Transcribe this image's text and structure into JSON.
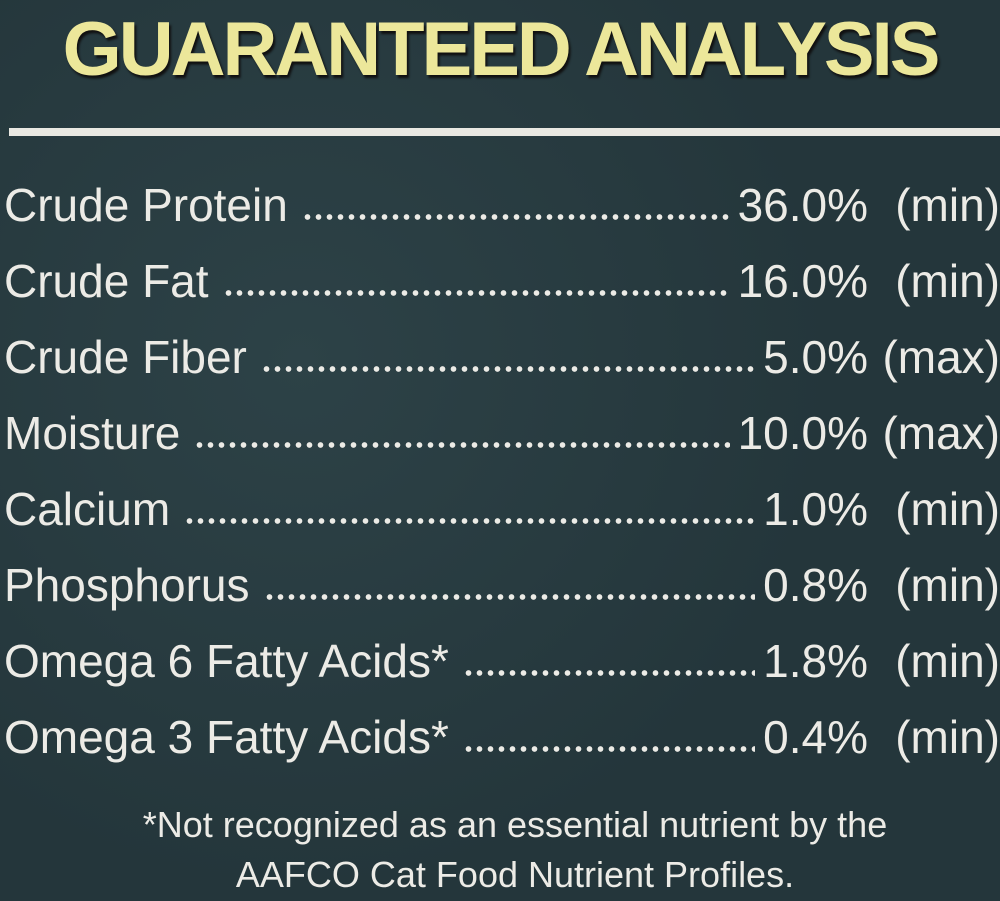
{
  "title": "GUARANTEED ANALYSIS",
  "rows": [
    {
      "name": "Crude Protein",
      "value": "36.0%",
      "unit": "(min)"
    },
    {
      "name": "Crude Fat",
      "value": "16.0%",
      "unit": "(min)"
    },
    {
      "name": "Crude Fiber",
      "value": "5.0%",
      "unit": "(max)"
    },
    {
      "name": "Moisture",
      "value": "10.0%",
      "unit": "(max)"
    },
    {
      "name": "Calcium",
      "value": "1.0%",
      "unit": "(min)"
    },
    {
      "name": "Phosphorus",
      "value": "0.8%",
      "unit": "(min)"
    },
    {
      "name": "Omega 6 Fatty Acids*",
      "value": "1.8%",
      "unit": "(min)"
    },
    {
      "name": "Omega 3 Fatty Acids*",
      "value": "0.4%",
      "unit": "(min)"
    }
  ],
  "footnote": [
    "*Not recognized as an essential nutrient by the",
    "AAFCO Cat Food Nutrient Profiles."
  ],
  "colors": {
    "background": "#24363b",
    "title": "#ece79a",
    "text": "#ecebe6"
  }
}
